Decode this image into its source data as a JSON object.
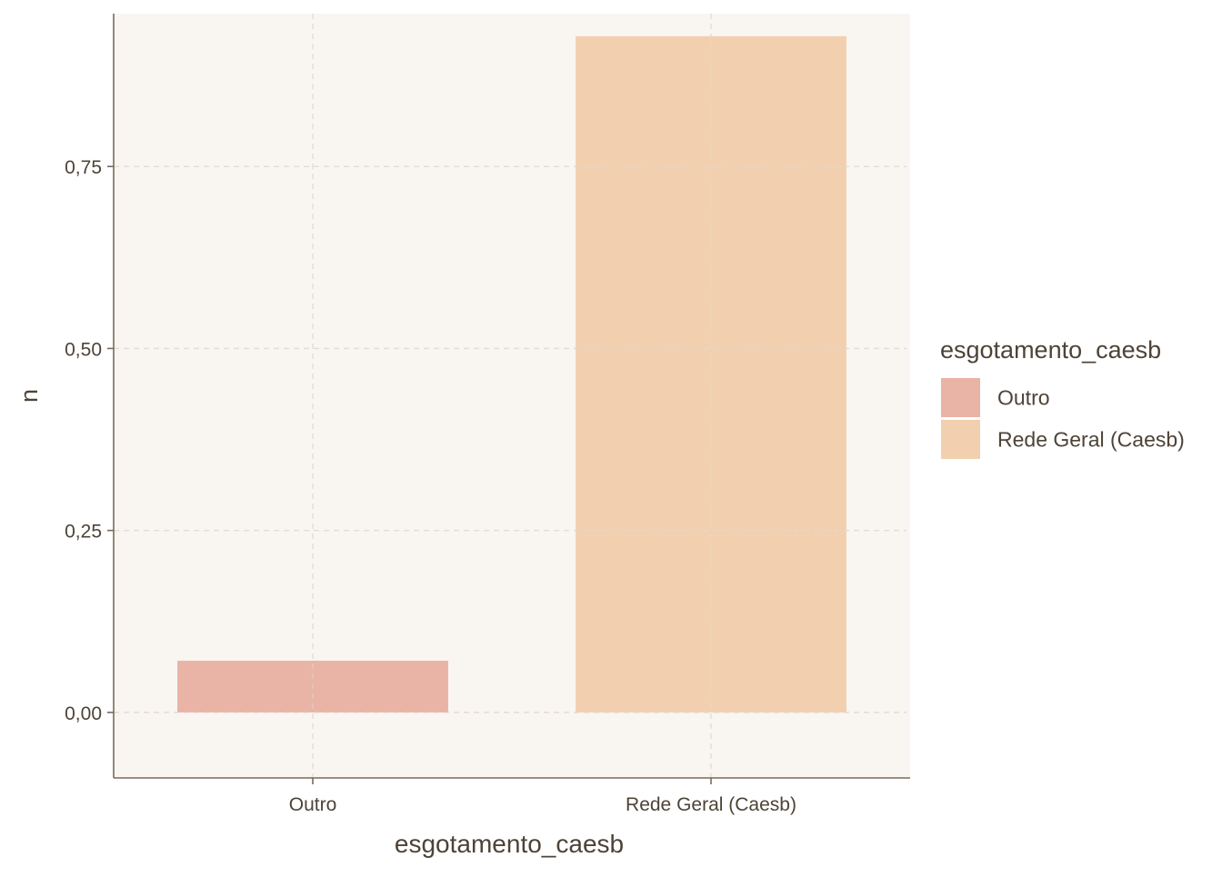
{
  "chart_data": {
    "type": "bar",
    "categories": [
      "Outro",
      "Rede Geral (Caesb)"
    ],
    "values": [
      0.071,
      0.929
    ],
    "colors": [
      "#E9B3A6",
      "#F2CFAF"
    ],
    "title": "",
    "xlabel": "esgotamento_caesb",
    "ylabel": "n",
    "ylim": [
      -0.09,
      0.96
    ],
    "yticks": [
      0,
      0.25,
      0.5,
      0.75
    ],
    "ytick_labels": [
      "0,00",
      "0,25",
      "0,50",
      "0,75"
    ],
    "grid": true,
    "legend": {
      "title": "esgotamento_caesb",
      "position": "right",
      "entries": [
        "Outro",
        "Rede Geral (Caesb)"
      ]
    }
  },
  "theme": {
    "panel_bg": "#F9F6F2",
    "grid_color": "#E2DCD5",
    "axis_color": "#7A6A5A",
    "text_color": "#4E4337"
  }
}
